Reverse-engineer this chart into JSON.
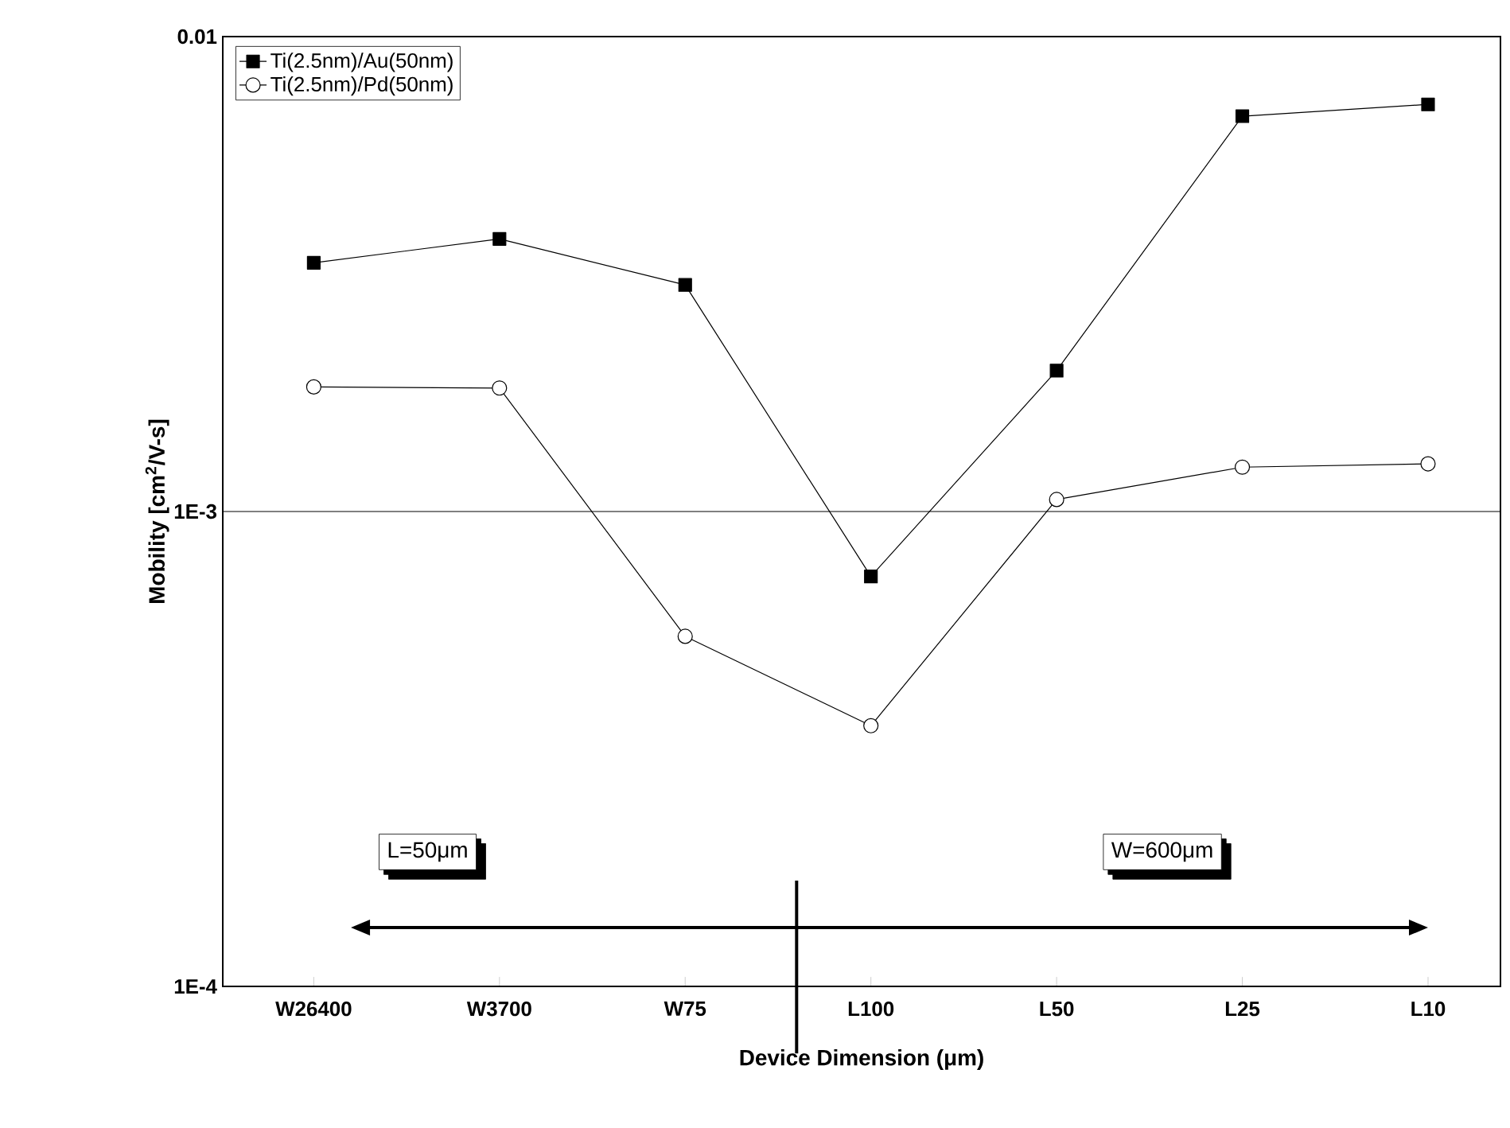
{
  "chart_data": {
    "type": "line",
    "xlabel": "Device Dimension (μm)",
    "ylabel": "Mobility [cm$^{2}$/V-s]",
    "categories": [
      "W26400",
      "W3700",
      "W75",
      "L100",
      "L50",
      "L25",
      "L10"
    ],
    "series": [
      {
        "name": "Ti(2.5nm)/Au(50nm)",
        "color": "#000000",
        "marker": "square",
        "values": [
          0.00334,
          0.00375,
          0.003,
          0.00073,
          0.00198,
          0.0068,
          0.0072
        ]
      },
      {
        "name": "Ti(2.5nm)/Pd(50nm)",
        "color": "#000000",
        "marker": "circle",
        "values": [
          0.00183,
          0.00182,
          0.000546,
          0.000354,
          0.00106,
          0.00124,
          0.00126
        ]
      }
    ],
    "log": "y",
    "ylim": [
      0.0001,
      0.01
    ],
    "yticks": [
      {
        "value": 0.0001,
        "label": "1E-4"
      },
      {
        "value": 0.001,
        "label": "1E-3"
      },
      {
        "value": 0.01,
        "label": "0.01"
      }
    ],
    "grid": "y",
    "legend": "top left",
    "annotations": [
      "L=50μm",
      "W=600μm"
    ]
  }
}
